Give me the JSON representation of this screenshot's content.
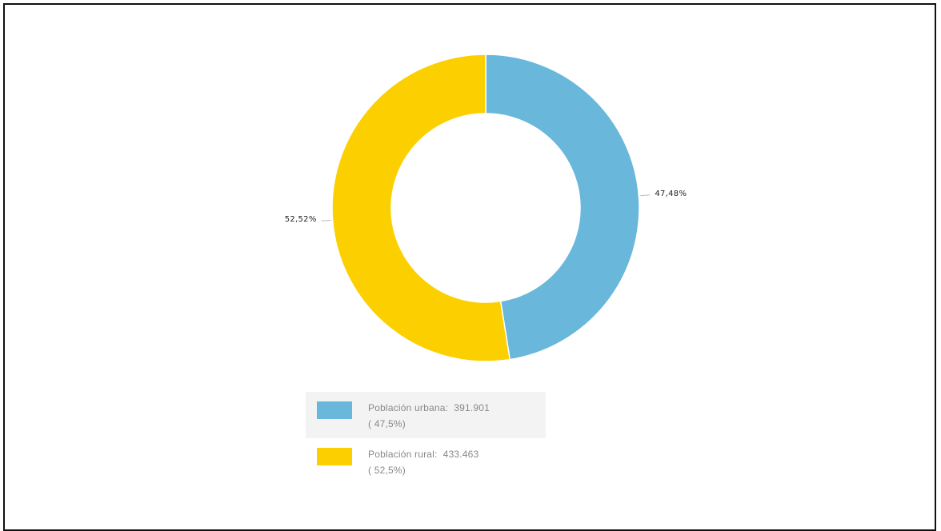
{
  "chart_data": {
    "type": "pie",
    "variant": "donut",
    "slices": [
      {
        "label": "Población urbana",
        "value": 391901,
        "percent_label": "47,48%",
        "legend_value": "391.901",
        "legend_share": "( 47,5%)",
        "color": "#6ab7dc"
      },
      {
        "label": "Población rural",
        "value": 433463,
        "percent_label": "52,52%",
        "legend_value": "433.463",
        "legend_share": "( 52,5%)",
        "color": "#fcd000"
      }
    ],
    "legend_position": "bottom",
    "title": ""
  }
}
